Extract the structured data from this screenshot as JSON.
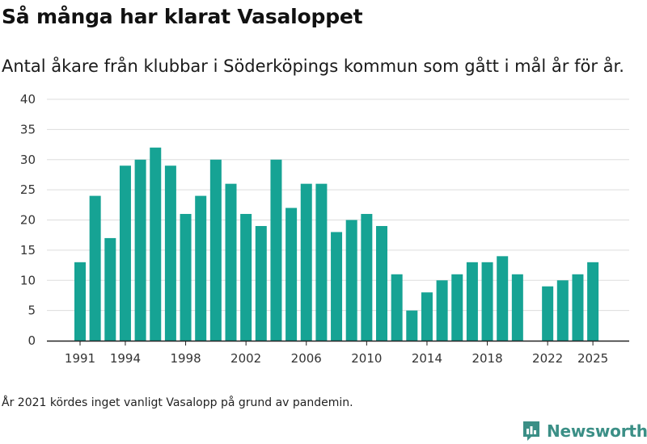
{
  "header": {
    "title": "Så många har klarat Vasaloppet",
    "subtitle": "Antal åkare från klubbar i Söderköpings kommun som gått i mål år för år."
  },
  "footer": {
    "note": "År 2021 kördes inget vanligt Vasalopp på grund av pandemin.",
    "brand": "Newsworthy"
  },
  "colors": {
    "bar": "#16a394",
    "grid": "#dddddd",
    "axis": "#222222",
    "brand": "#3b8f86"
  },
  "chart_data": {
    "type": "bar",
    "title": "Så många har klarat Vasaloppet",
    "xlabel": "",
    "ylabel": "",
    "ylim": [
      0,
      40
    ],
    "yticks": [
      0,
      5,
      10,
      15,
      20,
      25,
      30,
      35,
      40
    ],
    "grid": true,
    "xtick_labels": [
      "1991",
      "1994",
      "1998",
      "2002",
      "2006",
      "2010",
      "2014",
      "2018",
      "2022",
      "2025"
    ],
    "categories": [
      1991,
      1992,
      1993,
      1994,
      1995,
      1996,
      1997,
      1998,
      1999,
      2000,
      2001,
      2002,
      2003,
      2004,
      2005,
      2006,
      2007,
      2008,
      2009,
      2010,
      2011,
      2012,
      2013,
      2014,
      2015,
      2016,
      2017,
      2018,
      2019,
      2020,
      2021,
      2022,
      2023,
      2024,
      2025
    ],
    "values": [
      13,
      24,
      17,
      29,
      30,
      32,
      29,
      21,
      24,
      30,
      26,
      21,
      19,
      30,
      22,
      26,
      26,
      18,
      20,
      21,
      19,
      11,
      5,
      8,
      10,
      11,
      13,
      13,
      14,
      11,
      null,
      9,
      10,
      11,
      13
    ]
  }
}
